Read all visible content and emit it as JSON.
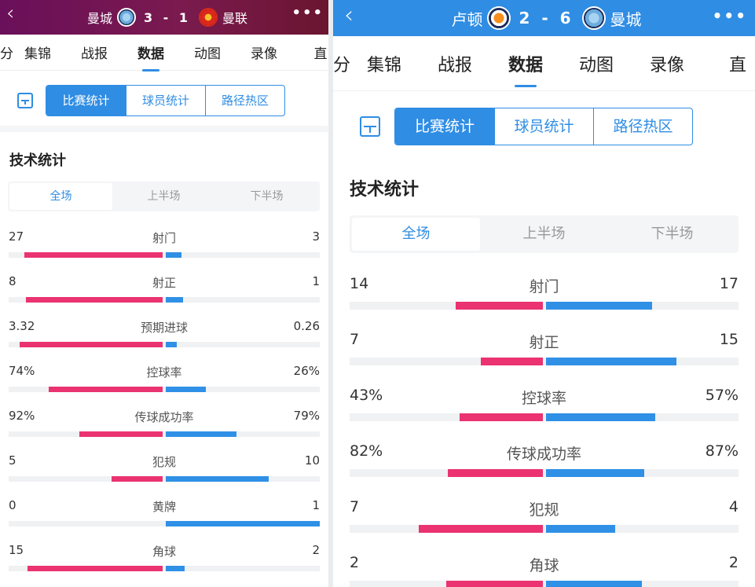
{
  "left": {
    "header": {
      "back_icon": "‹",
      "more_icon": "•••",
      "home_team": "曼城",
      "score": "3 - 1",
      "away_team": "曼联",
      "home_crest": "man-city-crest",
      "away_crest": "man-united-crest"
    },
    "tabs": [
      {
        "label": "分"
      },
      {
        "label": "集锦"
      },
      {
        "label": "战报"
      },
      {
        "label": "数据",
        "active": true
      },
      {
        "label": "动图"
      },
      {
        "label": "录像"
      },
      {
        "label": "直"
      }
    ],
    "segments": [
      "比赛统计",
      "球员统计",
      "路径热区"
    ],
    "section_title": "技术统计",
    "periods": [
      "全场",
      "上半场",
      "下半场"
    ],
    "stats": [
      {
        "label": "射门",
        "home": "27",
        "away": "3",
        "home_frac": 0.9,
        "away_frac": 0.1
      },
      {
        "label": "射正",
        "home": "8",
        "away": "1",
        "home_frac": 0.89,
        "away_frac": 0.11
      },
      {
        "label": "预期进球",
        "home": "3.32",
        "away": "0.26",
        "home_frac": 0.93,
        "away_frac": 0.07
      },
      {
        "label": "控球率",
        "home": "74%",
        "away": "26%",
        "home_frac": 0.74,
        "away_frac": 0.26
      },
      {
        "label": "传球成功率",
        "home": "92%",
        "away": "79%",
        "home_frac": 0.54,
        "away_frac": 0.46
      },
      {
        "label": "犯规",
        "home": "5",
        "away": "10",
        "home_frac": 0.33,
        "away_frac": 0.67
      },
      {
        "label": "黄牌",
        "home": "0",
        "away": "1",
        "home_frac": 0.0,
        "away_frac": 1.0
      },
      {
        "label": "角球",
        "home": "15",
        "away": "2",
        "home_frac": 0.88,
        "away_frac": 0.12
      }
    ]
  },
  "right": {
    "header": {
      "back_icon": "‹",
      "more_icon": "•••",
      "home_team": "卢顿",
      "score": "2 - 6",
      "away_team": "曼城",
      "home_crest": "luton-crest",
      "away_crest": "man-city-crest"
    },
    "tabs": [
      {
        "label": "分"
      },
      {
        "label": "集锦"
      },
      {
        "label": "战报"
      },
      {
        "label": "数据",
        "active": true
      },
      {
        "label": "动图"
      },
      {
        "label": "录像"
      },
      {
        "label": "直"
      }
    ],
    "segments": [
      "比赛统计",
      "球员统计",
      "路径热区"
    ],
    "section_title": "技术统计",
    "periods": [
      "全场",
      "上半场",
      "下半场"
    ],
    "stats": [
      {
        "label": "射门",
        "home": "14",
        "away": "17",
        "home_frac": 0.45,
        "away_frac": 0.55
      },
      {
        "label": "射正",
        "home": "7",
        "away": "15",
        "home_frac": 0.32,
        "away_frac": 0.68
      },
      {
        "label": "控球率",
        "home": "43%",
        "away": "57%",
        "home_frac": 0.43,
        "away_frac": 0.57
      },
      {
        "label": "传球成功率",
        "home": "82%",
        "away": "87%",
        "home_frac": 0.49,
        "away_frac": 0.51
      },
      {
        "label": "犯规",
        "home": "7",
        "away": "4",
        "home_frac": 0.64,
        "away_frac": 0.36
      },
      {
        "label": "角球",
        "home": "2",
        "away": "2",
        "home_frac": 0.5,
        "away_frac": 0.5
      }
    ]
  },
  "colors": {
    "accent": "#2f8de4",
    "home_bar": "#ea3370",
    "away_bar": "#2f90e6",
    "left_header": "#6a0f5a",
    "right_header": "#2f8de4"
  }
}
